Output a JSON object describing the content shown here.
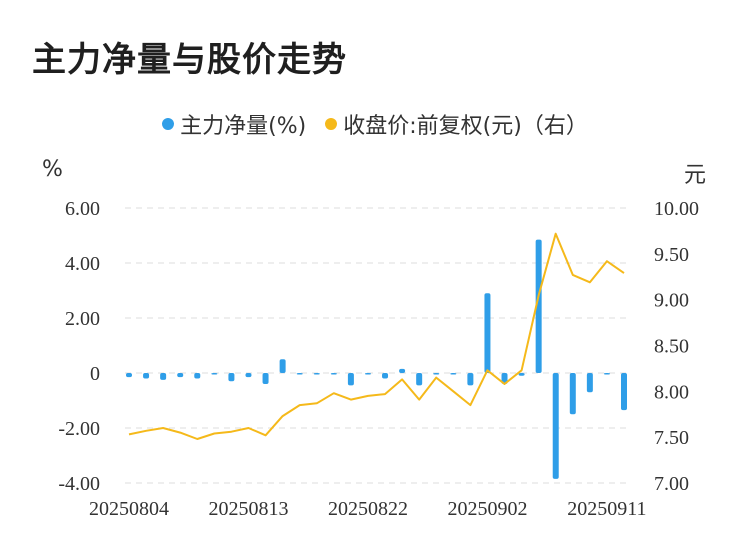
{
  "title": "主力净量与股价走势",
  "legend": {
    "series1": "主力净量(%)",
    "series2": "收盘价:前复权(元)（右）"
  },
  "units": {
    "left": "%",
    "right": "元"
  },
  "colors": {
    "bar": "#2f9ee8",
    "line": "#f5b91a",
    "grid": "#dddddd",
    "text": "#333333"
  },
  "chart_data": {
    "type": "bar+line",
    "title": "主力净量与股价走势",
    "x_tick_labels": [
      "20250804",
      "20250813",
      "20250822",
      "20250902",
      "20250911"
    ],
    "x_tick_indices": [
      0,
      7,
      14,
      21,
      28
    ],
    "y_left": {
      "label": "%",
      "ticks": [
        "6.00",
        "4.00",
        "2.00",
        "0",
        "-2.00",
        "-4.00"
      ],
      "range": [
        -4,
        6
      ]
    },
    "y_right": {
      "label": "元",
      "ticks": [
        "10.00",
        "9.50",
        "9.00",
        "8.50",
        "8.00",
        "7.50",
        "7.00"
      ],
      "range": [
        7,
        10
      ]
    },
    "grid": true,
    "legend_position": "top-center",
    "series": [
      {
        "name": "主力净量(%)",
        "type": "bar",
        "axis": "left",
        "values": [
          -0.15,
          -0.2,
          -0.25,
          -0.15,
          -0.2,
          -0.05,
          -0.3,
          -0.15,
          -0.4,
          0.5,
          -0.05,
          -0.05,
          -0.05,
          -0.45,
          -0.05,
          -0.2,
          0.15,
          -0.45,
          -0.05,
          -0.05,
          -0.45,
          2.9,
          -0.4,
          -0.1,
          4.85,
          -3.85,
          -1.5,
          -0.7,
          -0.05,
          -1.35
        ]
      },
      {
        "name": "收盘价:前复权(元)（右）",
        "type": "line",
        "axis": "right",
        "values": [
          7.53,
          7.57,
          7.6,
          7.55,
          7.48,
          7.54,
          7.56,
          7.6,
          7.52,
          7.73,
          7.85,
          7.87,
          7.98,
          7.91,
          7.95,
          7.97,
          8.13,
          7.91,
          8.15,
          8.0,
          7.85,
          8.23,
          8.08,
          8.23,
          9.05,
          9.72,
          9.27,
          9.19,
          9.42,
          9.29
        ]
      }
    ]
  }
}
